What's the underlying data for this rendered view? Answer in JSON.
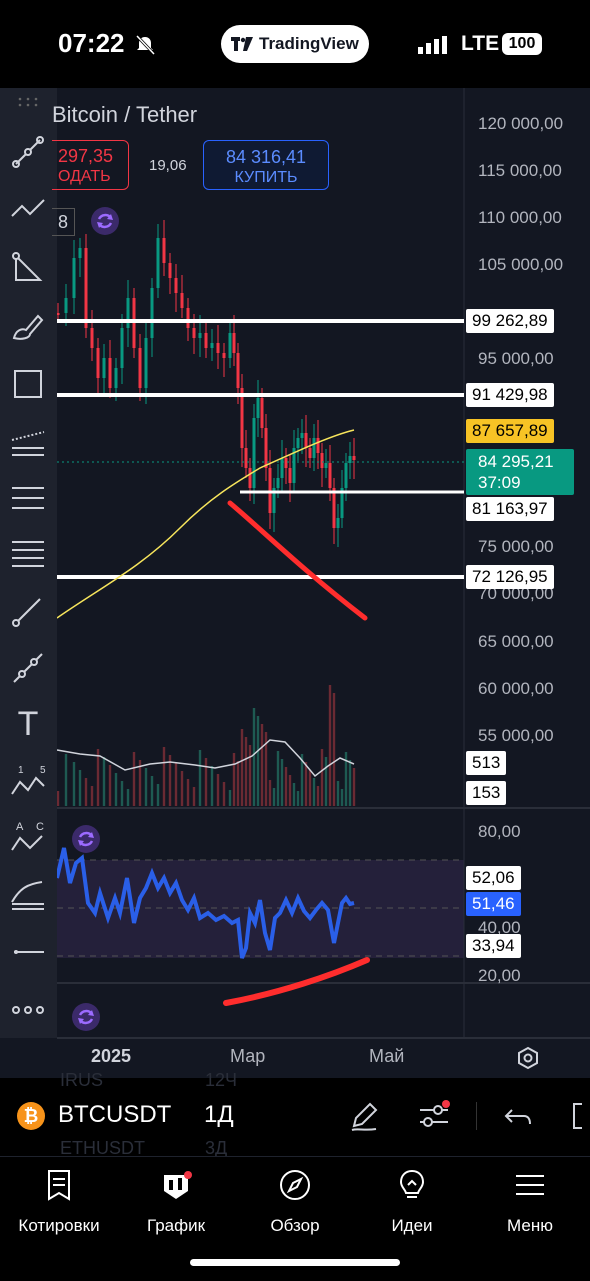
{
  "status_bar": {
    "time": "07:22",
    "app_pill": "TradingView",
    "network": "LTE",
    "battery": "100"
  },
  "chart": {
    "title": "Bitcoin / Tether",
    "sell": {
      "price": "297,35",
      "label": "ОДАТЬ"
    },
    "spread": "19,06",
    "buy": {
      "price": "84 316,41",
      "label": "КУПИТЬ"
    },
    "interval_fragment": "8",
    "price_axis": [
      "120 000,00",
      "115 000,00",
      "110 000,00",
      "105 000,00",
      "95 000,00",
      "75 000,00",
      "70 000,00",
      "65 000,00",
      "60 000,00",
      "55 000,00"
    ],
    "rsi_axis": [
      "80,00",
      "40,00",
      "20,00"
    ],
    "level_tags": {
      "l1": "99 262,89",
      "l2": "91 429,98",
      "ma": "87 657,89",
      "current_price": "84 295,21",
      "countdown": "37:09",
      "l3": "81 163,97",
      "l4": "72 126,95",
      "vol_ma": "513",
      "vol": "153",
      "rsi_upper": "52,06",
      "rsi_value": "51,46",
      "rsi_lower": "33,94"
    },
    "time_axis": [
      "2025",
      "Мар",
      "Май"
    ],
    "colors": {
      "up": "#089981",
      "down": "#f23645",
      "ma": "#f7e55c",
      "rsi": "#2a5fe8",
      "annotation": "#ff2d2d"
    },
    "chart_data": {
      "type": "candlestick",
      "series": [
        {
          "name": "Bitcoin / Tether",
          "type": "candlestick",
          "y_range": [
            55000,
            120000
          ]
        }
      ],
      "horizontal_levels": [
        99262.89,
        91429.98,
        81163.97,
        72126.95
      ],
      "moving_average_last": 87657.89,
      "last_price": 84295.21,
      "rsi": {
        "value": 51.46,
        "upper_band": 52.06,
        "lower_band": 33.94,
        "axis": [
          20,
          80
        ]
      },
      "volume": {
        "last": 153,
        "ma": 513
      }
    }
  },
  "toolbar": {
    "items": [
      "trend-line-icon",
      "polyline-icon",
      "triangle-icon",
      "brush-icon",
      "rectangle-icon",
      "parallel-channel-icon",
      "pitchfork-icon",
      "fib-levels-icon",
      "ray-icon",
      "line-icon",
      "text-icon",
      "elliott-wave-icon",
      "abcd-pattern-icon",
      "gann-fan-icon",
      "horizontal-line-icon",
      "more-icon"
    ],
    "text_tool_glyph": "T",
    "elliott_labels": [
      "1",
      "5"
    ],
    "abcd_labels": [
      "A",
      "C"
    ]
  },
  "symbol_bar": {
    "pair": "BTCUSDT",
    "timeframe": "1Д",
    "ghost_rows": [
      "IRUS",
      "12Ч",
      "ETHUSDT",
      "3Д"
    ]
  },
  "bottom_nav": {
    "items": [
      {
        "label": "Котировки",
        "icon": "quotes-icon"
      },
      {
        "label": "График",
        "icon": "chart-icon"
      },
      {
        "label": "Обзор",
        "icon": "compass-icon"
      },
      {
        "label": "Идеи",
        "icon": "lightbulb-icon"
      },
      {
        "label": "Меню",
        "icon": "menu-icon"
      }
    ]
  }
}
